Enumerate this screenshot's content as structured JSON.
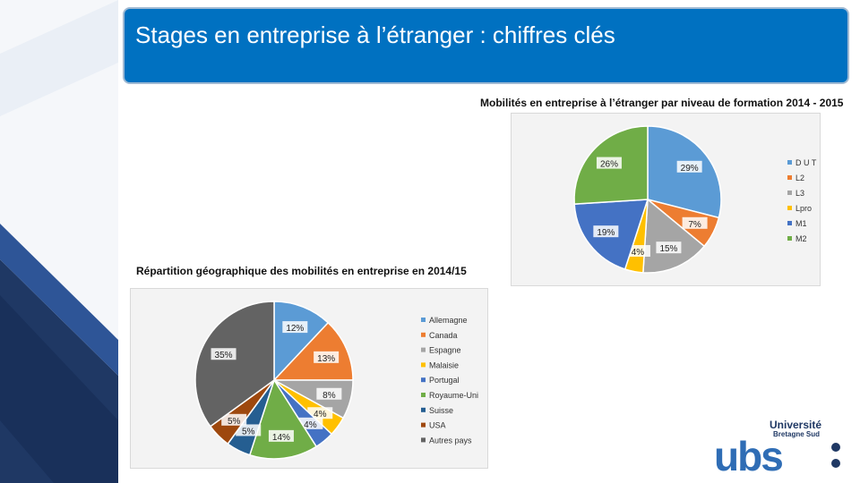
{
  "slide": {
    "title": "Stages en entreprise à l’étranger : chiffres clés"
  },
  "colors": {
    "title_bg": "#0071c1",
    "strip_dark": "#1f3864",
    "strip_light": "#e8eef6"
  },
  "logo": {
    "line1": "Université",
    "line2": "Bretagne Sud",
    "wordmark": "ubs"
  },
  "chart_data": [
    {
      "type": "pie",
      "title": "Mobilités en entreprise à l’étranger par niveau de formation 2014 - 2015",
      "legend_position": "right",
      "categories": [
        "D U T",
        "L2",
        "L3",
        "Lpro",
        "M1",
        "M2"
      ],
      "values": [
        29,
        7,
        15,
        4,
        19,
        26
      ],
      "labels": [
        "29%",
        "7%",
        "15%",
        "4%",
        "19%",
        "26%"
      ],
      "colors": [
        "#5b9bd5",
        "#ed7d31",
        "#a5a5a5",
        "#ffc000",
        "#4472c4",
        "#70ad47"
      ]
    },
    {
      "type": "pie",
      "title": "Répartition géographique des mobilités en entreprise en 2014/15",
      "legend_position": "right",
      "categories": [
        "Allemagne",
        "Canada",
        "Espagne",
        "Malaisie",
        "Portugal",
        "Royaume-Uni",
        "Suisse",
        "USA",
        "Autres pays"
      ],
      "values": [
        12,
        13,
        8,
        4,
        4,
        14,
        5,
        5,
        35
      ],
      "labels": [
        "12%",
        "13%",
        "8%",
        "4%",
        "4%",
        "14%",
        "5%",
        "5%",
        "35%"
      ],
      "colors": [
        "#5b9bd5",
        "#ed7d31",
        "#a5a5a5",
        "#ffc000",
        "#4472c4",
        "#70ad47",
        "#255e91",
        "#9e480e",
        "#636363"
      ]
    }
  ]
}
